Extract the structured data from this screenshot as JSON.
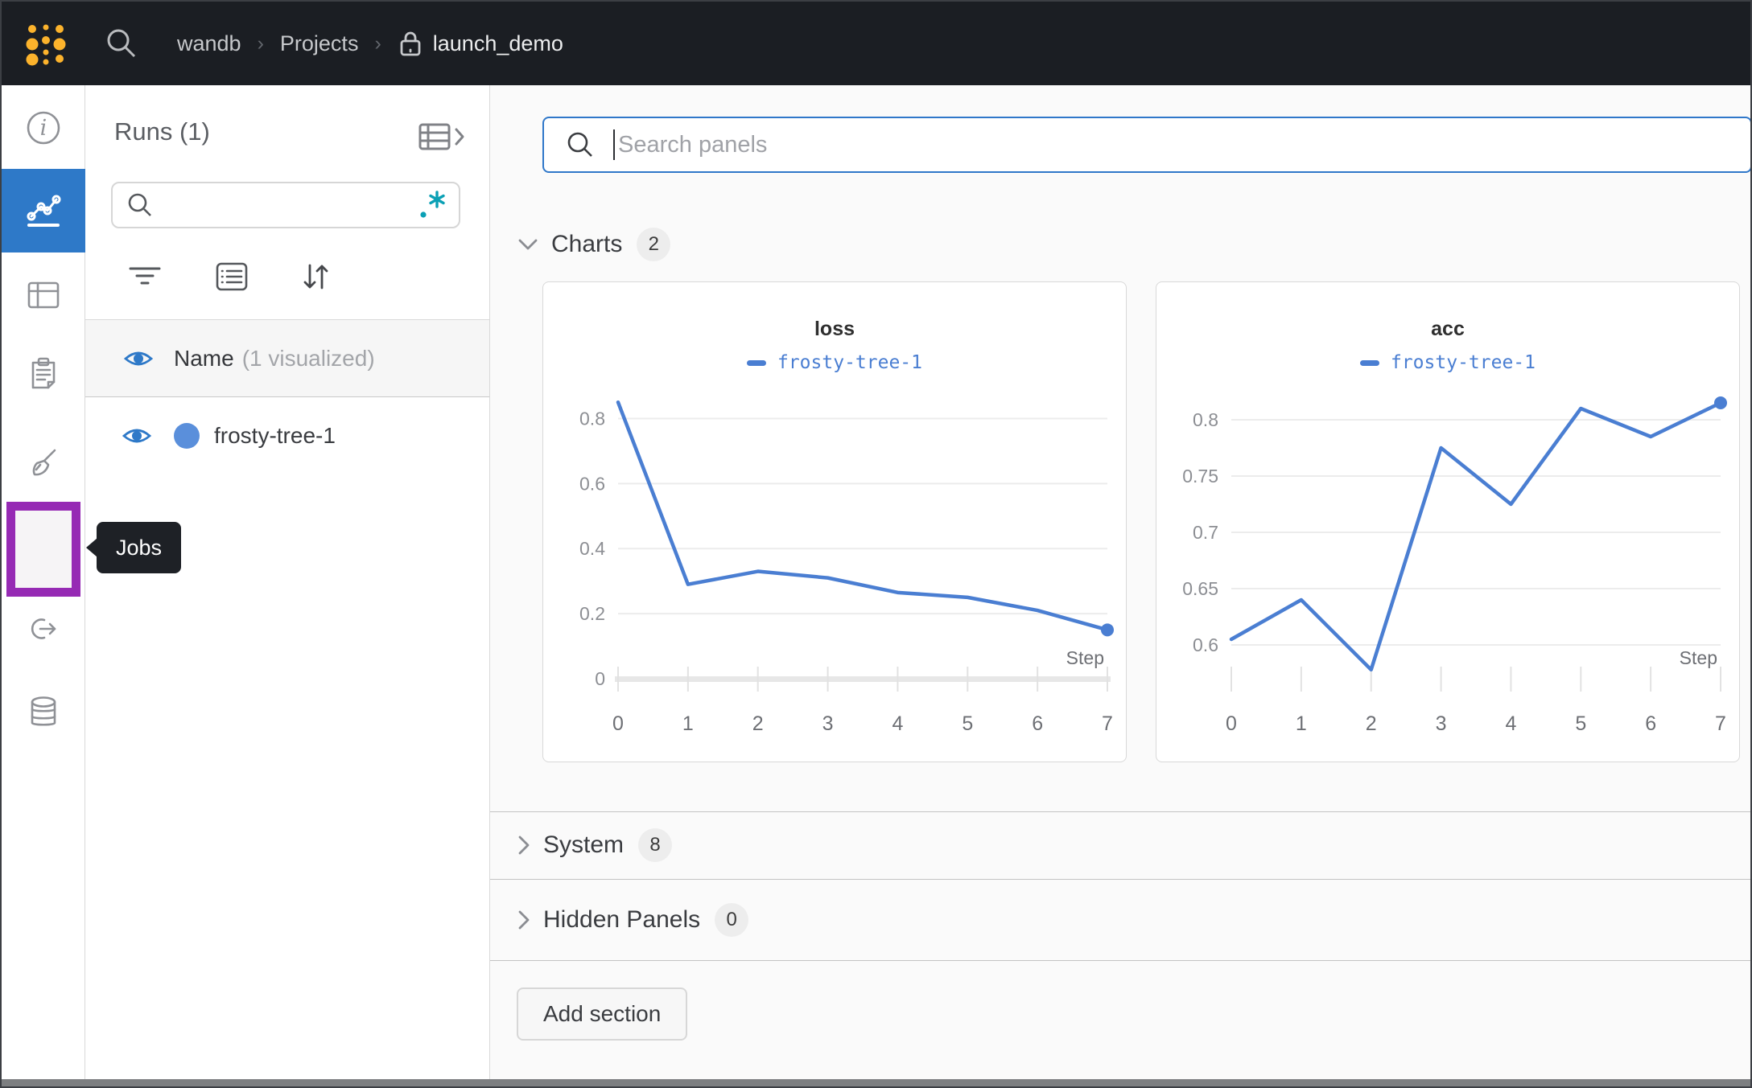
{
  "topbar": {
    "breadcrumb": {
      "org": "wandb",
      "section": "Projects",
      "project": "launch_demo"
    }
  },
  "sidebar": {
    "items": [
      {
        "icon": "info-icon"
      },
      {
        "icon": "workspace-chart-icon",
        "selected": true
      },
      {
        "icon": "table-icon"
      },
      {
        "icon": "logs-clipboard-icon"
      },
      {
        "icon": "sweeps-broom-icon"
      },
      {
        "icon": "jobs-terminal-icon",
        "highlighted": true
      },
      {
        "icon": "launch-link-icon"
      },
      {
        "icon": "artifacts-database-icon"
      }
    ],
    "tooltip_label": "Jobs"
  },
  "runs_panel": {
    "title": "Runs (1)",
    "search_placeholder": "",
    "name_header": "Name",
    "name_annotation": "(1 visualized)",
    "runs": [
      {
        "name": "frosty-tree-1"
      }
    ]
  },
  "main": {
    "panel_search_placeholder": "Search panels",
    "sections": [
      {
        "label": "Charts",
        "count": "2"
      },
      {
        "label": "System",
        "count": "8"
      },
      {
        "label": "Hidden Panels",
        "count": "0"
      }
    ],
    "add_section_label": "Add section"
  },
  "chart_data": [
    {
      "type": "line",
      "title": "loss",
      "series": [
        {
          "name": "frosty-tree-1",
          "x": [
            0,
            1,
            2,
            3,
            4,
            5,
            6,
            7
          ],
          "values": [
            0.85,
            0.29,
            0.33,
            0.31,
            0.265,
            0.25,
            0.21,
            0.15
          ]
        }
      ],
      "xlabel": "Step",
      "yticks": [
        0,
        0.2,
        0.4,
        0.6,
        0.8
      ],
      "ylim": [
        0,
        0.9
      ],
      "xlim": [
        0,
        7
      ],
      "baseline": true,
      "grid": true,
      "legend_position": "top",
      "line_color": "#4a7ed2"
    },
    {
      "type": "line",
      "title": "acc",
      "series": [
        {
          "name": "frosty-tree-1",
          "x": [
            0,
            1,
            2,
            3,
            4,
            5,
            6,
            7
          ],
          "values": [
            0.605,
            0.64,
            0.578,
            0.775,
            0.725,
            0.81,
            0.785,
            0.815
          ]
        }
      ],
      "xlabel": "Step",
      "yticks": [
        0.6,
        0.65,
        0.7,
        0.75,
        0.8
      ],
      "ylim": [
        0.57,
        0.83
      ],
      "xlim": [
        0,
        7
      ],
      "baseline": false,
      "grid": true,
      "legend_position": "top",
      "line_color": "#4a7ed2"
    }
  ],
  "colors": {
    "topbar_bg": "#1b1e23",
    "accent_blue": "#2e79c8",
    "chart_line_blue": "#4a7ed2",
    "run_dot_blue": "#5a8fdb",
    "highlight_purple": "#962ab4",
    "regex_teal": "#0ba0b5",
    "logo_yellow": "#fcb32c",
    "main_bg": "#fafafa"
  }
}
